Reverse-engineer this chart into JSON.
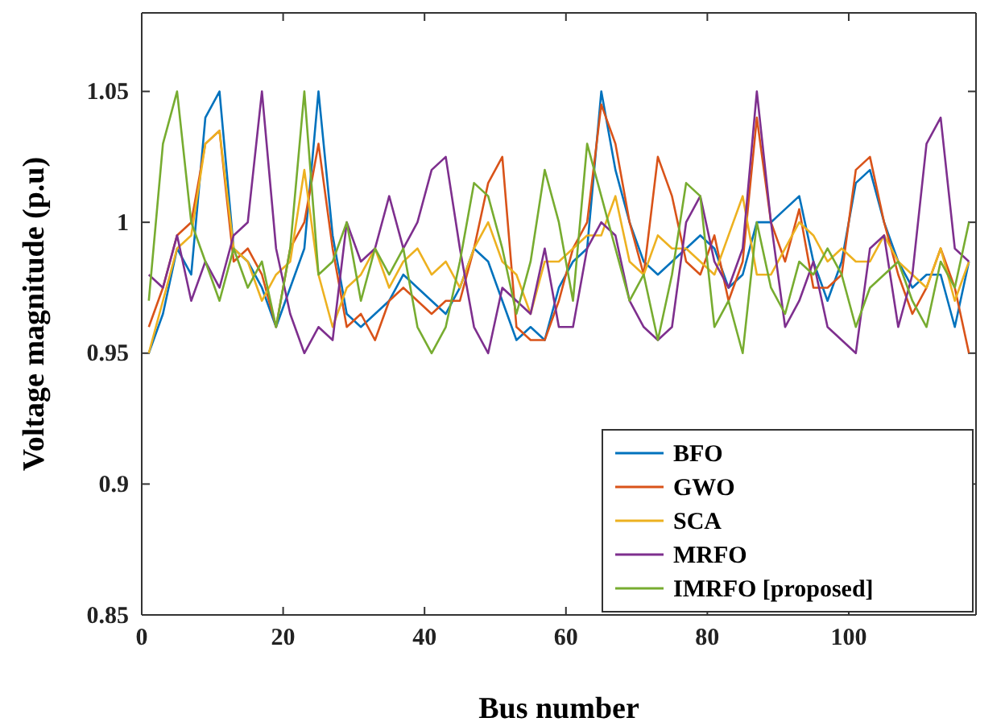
{
  "chart_data": {
    "type": "line",
    "xlabel": "Bus number",
    "ylabel": "Voltage magnitude (p.u)",
    "x": [
      1,
      3,
      5,
      7,
      9,
      11,
      13,
      15,
      17,
      19,
      21,
      23,
      25,
      27,
      29,
      31,
      33,
      35,
      37,
      39,
      41,
      43,
      45,
      47,
      49,
      51,
      53,
      55,
      57,
      59,
      61,
      63,
      65,
      67,
      69,
      71,
      73,
      75,
      77,
      79,
      81,
      83,
      85,
      87,
      89,
      91,
      93,
      95,
      97,
      99,
      101,
      103,
      105,
      107,
      109,
      111,
      113,
      115,
      117
    ],
    "xlim": [
      0,
      118
    ],
    "xticks": [
      0,
      20,
      40,
      60,
      80,
      100
    ],
    "ylim": [
      0.85,
      1.08
    ],
    "yticks": [
      0.85,
      0.9,
      0.95,
      1,
      1.05
    ],
    "grid": false,
    "legend": "bottom right",
    "line_style": "solid",
    "marker": "none",
    "series": [
      {
        "name": "BFO",
        "color": "#0072bd",
        "values": [
          0.95,
          0.965,
          0.99,
          0.98,
          1.04,
          1.05,
          0.99,
          0.985,
          0.975,
          0.96,
          0.975,
          0.99,
          1.05,
          0.995,
          0.965,
          0.96,
          0.965,
          0.97,
          0.98,
          0.975,
          0.97,
          0.965,
          0.975,
          0.99,
          0.985,
          0.97,
          0.955,
          0.96,
          0.955,
          0.975,
          0.985,
          0.99,
          1.05,
          1.02,
          1.0,
          0.985,
          0.98,
          0.985,
          0.99,
          0.995,
          0.99,
          0.975,
          0.98,
          1.0,
          1.0,
          1.005,
          1.01,
          0.985,
          0.97,
          0.985,
          1.015,
          1.02,
          1.0,
          0.985,
          0.975,
          0.98,
          0.98,
          0.96,
          0.985
        ]
      },
      {
        "name": "GWO",
        "color": "#d95319",
        "values": [
          0.96,
          0.975,
          0.995,
          1.0,
          1.03,
          1.035,
          0.985,
          0.99,
          0.98,
          0.96,
          0.99,
          1.0,
          1.03,
          0.99,
          0.96,
          0.965,
          0.955,
          0.97,
          0.975,
          0.97,
          0.965,
          0.97,
          0.97,
          0.99,
          1.015,
          1.025,
          0.96,
          0.955,
          0.955,
          0.97,
          0.99,
          1.0,
          1.045,
          1.03,
          1.0,
          0.98,
          1.025,
          1.01,
          0.985,
          0.98,
          0.995,
          0.97,
          0.985,
          1.04,
          1.0,
          0.985,
          1.005,
          0.975,
          0.975,
          0.98,
          1.02,
          1.025,
          1.0,
          0.98,
          0.965,
          0.975,
          0.99,
          0.975,
          0.95
        ]
      },
      {
        "name": "SCA",
        "color": "#edb120",
        "values": [
          0.95,
          0.97,
          0.99,
          0.995,
          1.03,
          1.035,
          0.99,
          0.985,
          0.97,
          0.98,
          0.985,
          1.02,
          0.98,
          0.96,
          0.975,
          0.98,
          0.99,
          0.975,
          0.985,
          0.99,
          0.98,
          0.985,
          0.975,
          0.99,
          1.0,
          0.985,
          0.98,
          0.965,
          0.985,
          0.985,
          0.99,
          0.995,
          0.995,
          1.01,
          0.985,
          0.98,
          0.995,
          0.99,
          0.99,
          0.985,
          0.98,
          0.995,
          1.01,
          0.98,
          0.98,
          0.99,
          1.0,
          0.995,
          0.985,
          0.99,
          0.985,
          0.985,
          0.995,
          0.985,
          0.98,
          0.975,
          0.99,
          0.97,
          0.985
        ]
      },
      {
        "name": "MRFO",
        "color": "#7e2f8e",
        "values": [
          0.98,
          0.975,
          0.995,
          0.97,
          0.985,
          0.975,
          0.995,
          1.0,
          1.05,
          0.99,
          0.965,
          0.95,
          0.96,
          0.955,
          1.0,
          0.985,
          0.99,
          1.01,
          0.99,
          1.0,
          1.02,
          1.025,
          0.99,
          0.96,
          0.95,
          0.975,
          0.97,
          0.965,
          0.99,
          0.96,
          0.96,
          0.99,
          1.0,
          0.995,
          0.97,
          0.96,
          0.955,
          0.96,
          1.0,
          1.01,
          0.985,
          0.975,
          0.99,
          1.05,
          1.0,
          0.96,
          0.97,
          0.985,
          0.96,
          0.955,
          0.95,
          0.99,
          0.995,
          0.96,
          0.98,
          1.03,
          1.04,
          0.99,
          0.985
        ]
      },
      {
        "name": "IMRFO [proposed]",
        "color": "#77ac30",
        "values": [
          0.97,
          1.03,
          1.05,
          1.0,
          0.985,
          0.97,
          0.99,
          0.975,
          0.985,
          0.96,
          0.99,
          1.05,
          0.98,
          0.985,
          1.0,
          0.97,
          0.99,
          0.98,
          0.99,
          0.96,
          0.95,
          0.96,
          0.985,
          1.015,
          1.01,
          0.99,
          0.965,
          0.985,
          1.02,
          1.0,
          0.97,
          1.03,
          1.01,
          0.99,
          0.97,
          0.98,
          0.955,
          0.98,
          1.015,
          1.01,
          0.96,
          0.97,
          0.95,
          1.0,
          0.975,
          0.965,
          0.985,
          0.98,
          0.99,
          0.98,
          0.96,
          0.975,
          0.98,
          0.985,
          0.97,
          0.96,
          0.985,
          0.975,
          1.0
        ]
      }
    ]
  }
}
